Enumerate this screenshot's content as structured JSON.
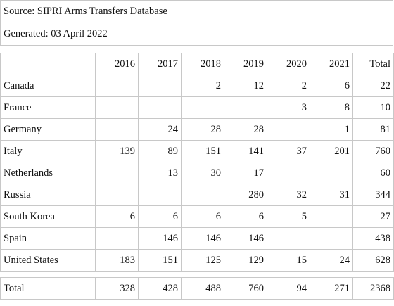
{
  "source": "Source: SIPRI Arms Transfers Database",
  "generated": "Generated: 03 April 2022",
  "columns": [
    "",
    "2016",
    "2017",
    "2018",
    "2019",
    "2020",
    "2021",
    "Total"
  ],
  "rows": [
    {
      "name": "Canada",
      "values": [
        "",
        "",
        "2",
        "12",
        "2",
        "6",
        "22"
      ]
    },
    {
      "name": "France",
      "values": [
        "",
        "",
        "",
        "",
        "3",
        "8",
        "10"
      ]
    },
    {
      "name": "Germany",
      "values": [
        "",
        "24",
        "28",
        "28",
        "",
        "1",
        "81"
      ]
    },
    {
      "name": "Italy",
      "values": [
        "139",
        "89",
        "151",
        "141",
        "37",
        "201",
        "760"
      ]
    },
    {
      "name": "Netherlands",
      "values": [
        "",
        "13",
        "30",
        "17",
        "",
        "",
        "60"
      ]
    },
    {
      "name": "Russia",
      "values": [
        "",
        "",
        "",
        "280",
        "32",
        "31",
        "344"
      ]
    },
    {
      "name": "South Korea",
      "values": [
        "6",
        "6",
        "6",
        "6",
        "5",
        "",
        "27"
      ]
    },
    {
      "name": "Spain",
      "values": [
        "",
        "146",
        "146",
        "146",
        "",
        "",
        "438"
      ]
    },
    {
      "name": "United States",
      "values": [
        "183",
        "151",
        "125",
        "129",
        "15",
        "24",
        "628"
      ]
    }
  ],
  "total": {
    "name": "Total",
    "values": [
      "328",
      "428",
      "488",
      "760",
      "94",
      "271",
      "2368"
    ]
  }
}
